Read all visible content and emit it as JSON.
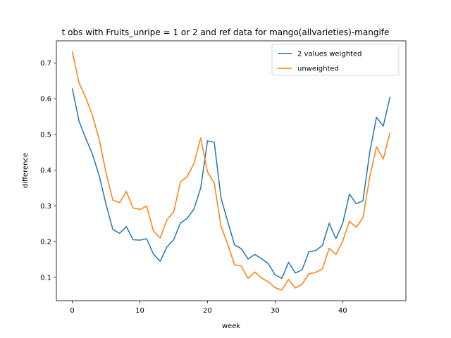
{
  "chart_data": {
    "type": "line",
    "title": "t obs with Fruits_unripe = 1 or 2 and ref data for mango(allvarieties)-mangife",
    "xlabel": "week",
    "ylabel": "difference",
    "xlim": [
      -2.35,
      49.35
    ],
    "ylim": [
      0.0345,
      0.762
    ],
    "xticks": [
      0,
      10,
      20,
      30,
      40
    ],
    "yticks": [
      0.1,
      0.2,
      0.3,
      0.4,
      0.5,
      0.6,
      0.7
    ],
    "xtick_labels": [
      "0",
      "10",
      "20",
      "30",
      "40"
    ],
    "ytick_labels": [
      "0.1",
      "0.2",
      "0.3",
      "0.4",
      "0.5",
      "0.6",
      "0.7"
    ],
    "grid": false,
    "legend_position": "top-right",
    "x": [
      0,
      1,
      2,
      3,
      4,
      5,
      6,
      7,
      8,
      9,
      10,
      11,
      12,
      13,
      14,
      15,
      16,
      17,
      18,
      19,
      20,
      21,
      22,
      23,
      24,
      25,
      26,
      27,
      28,
      29,
      30,
      31,
      32,
      33,
      34,
      35,
      36,
      37,
      38,
      39,
      40,
      41,
      42,
      43,
      44,
      45,
      46,
      47
    ],
    "series": [
      {
        "name": "2 values weighted",
        "color": "#1f77b4",
        "values": [
          0.629,
          0.537,
          0.489,
          0.444,
          0.383,
          0.304,
          0.234,
          0.223,
          0.242,
          0.205,
          0.204,
          0.208,
          0.165,
          0.145,
          0.185,
          0.205,
          0.252,
          0.265,
          0.291,
          0.35,
          0.482,
          0.478,
          0.322,
          0.256,
          0.191,
          0.18,
          0.151,
          0.164,
          0.152,
          0.138,
          0.107,
          0.097,
          0.142,
          0.112,
          0.121,
          0.171,
          0.175,
          0.189,
          0.251,
          0.208,
          0.251,
          0.333,
          0.306,
          0.314,
          0.45,
          0.548,
          0.523,
          0.605
        ]
      },
      {
        "name": "unweighted",
        "color": "#ff7f0e",
        "values": [
          0.733,
          0.644,
          0.603,
          0.552,
          0.485,
          0.392,
          0.316,
          0.309,
          0.34,
          0.294,
          0.29,
          0.299,
          0.23,
          0.21,
          0.261,
          0.283,
          0.367,
          0.382,
          0.419,
          0.49,
          0.395,
          0.364,
          0.243,
          0.192,
          0.135,
          0.131,
          0.097,
          0.115,
          0.098,
          0.087,
          0.071,
          0.064,
          0.094,
          0.07,
          0.081,
          0.11,
          0.113,
          0.124,
          0.181,
          0.164,
          0.201,
          0.257,
          0.24,
          0.267,
          0.381,
          0.465,
          0.431,
          0.505
        ]
      }
    ]
  }
}
